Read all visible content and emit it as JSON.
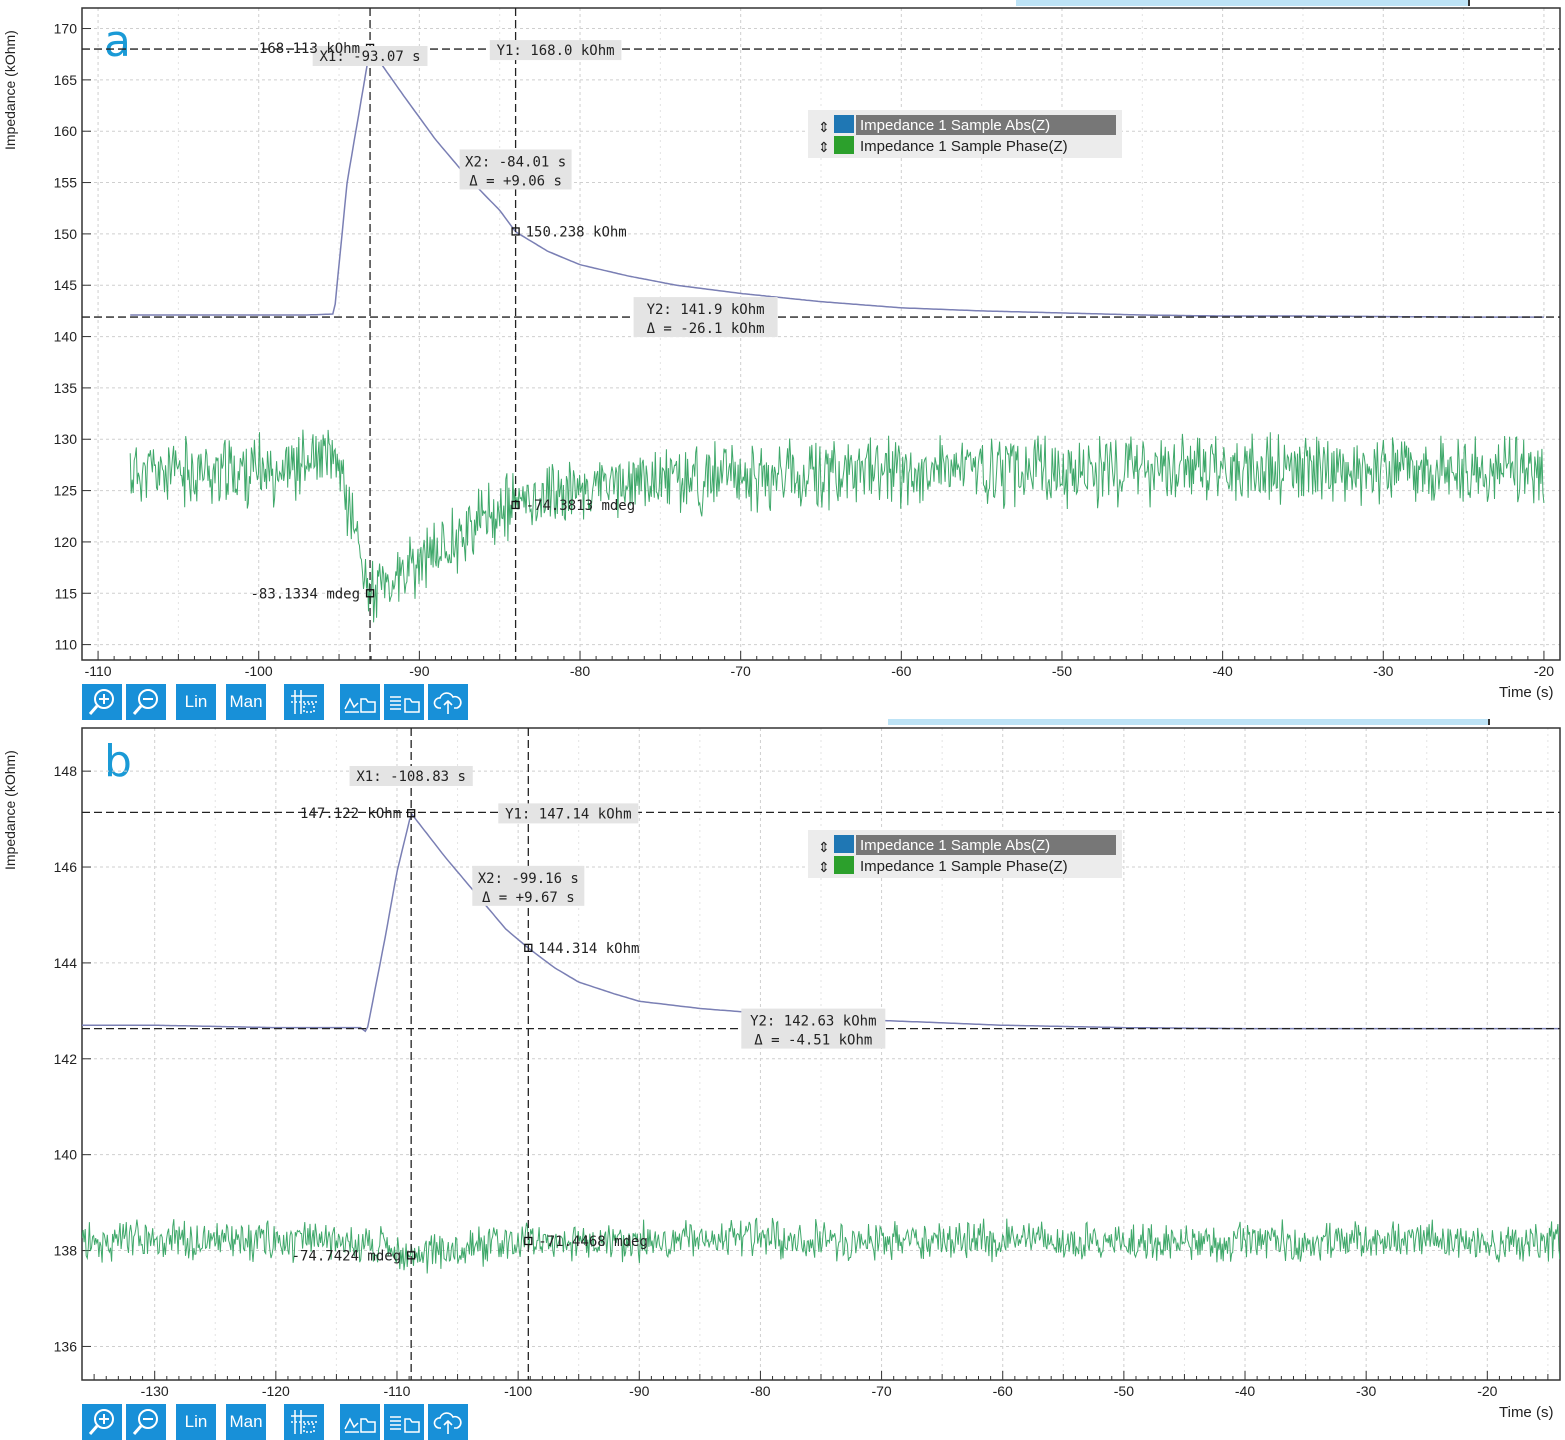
{
  "panels": [
    {
      "letter": "a",
      "ylabel": "Impedance (kOhm)",
      "xlabel": "Time (s)",
      "x_ticks": [
        "-110",
        "-100",
        "-90",
        "-80",
        "-70",
        "-60",
        "-50",
        "-40",
        "-30",
        "-20"
      ],
      "y_ticks": [
        "110",
        "115",
        "120",
        "125",
        "130",
        "135",
        "140",
        "145",
        "150",
        "155",
        "160",
        "165",
        "170"
      ],
      "cursors": {
        "x1": "X1: -93.07 s",
        "x2": "X2: -84.01 s",
        "x2_delta": "Δ = +9.06 s",
        "y1": "Y1: 168.0 kOhm",
        "y2": "Y2: 141.9 kOhm",
        "y2_delta": "Δ = -26.1 kOhm",
        "abs_at_x1": "168.113 kOhm",
        "abs_at_x2": "150.238 kOhm",
        "phase_at_x1": "-83.1334 mdeg",
        "phase_at_x2": "-74.3813 mdeg"
      },
      "legend": [
        "Impedance 1 Sample Abs(Z)",
        "Impedance 1 Sample Phase(Z)"
      ]
    },
    {
      "letter": "b",
      "ylabel": "Impedance (kOhm)",
      "xlabel": "Time (s)",
      "x_ticks": [
        "-130",
        "-120",
        "-110",
        "-100",
        "-90",
        "-80",
        "-70",
        "-60",
        "-50",
        "-40",
        "-30",
        "-20"
      ],
      "y_ticks": [
        "136",
        "138",
        "140",
        "142",
        "144",
        "146",
        "148"
      ],
      "cursors": {
        "x1": "X1: -108.83 s",
        "x2": "X2: -99.16 s",
        "x2_delta": "Δ = +9.67 s",
        "y1": "Y1: 147.14 kOhm",
        "y2": "Y2: 142.63 kOhm",
        "y2_delta": "Δ = -4.51 kOhm",
        "abs_at_x1": "147.122 kOhm",
        "abs_at_x2": "144.314 kOhm",
        "phase_at_x1": "-74.7424 mdeg",
        "phase_at_x2": "-71.4468 mdeg"
      },
      "legend": [
        "Impedance 1 Sample Abs(Z)",
        "Impedance 1 Sample Phase(Z)"
      ]
    }
  ],
  "toolbar": {
    "lin_label": "Lin",
    "man_label": "Man",
    "icons": [
      "zoom-in-icon",
      "zoom-out-icon",
      "cursor-grid-icon",
      "plot-export-icon",
      "data-export-icon",
      "cloud-upload-icon"
    ]
  },
  "colors": {
    "abs": "#7a7fb4",
    "phase": "#3fa86a",
    "legend_abs": "#1f77b4",
    "legend_phase": "#2ca02c",
    "toolbar": "#1890d8",
    "accent": "#1a9ad6"
  },
  "chart_data": [
    {
      "type": "line",
      "xlabel": "Time (s)",
      "ylabel": "Impedance (kOhm)",
      "xlim": [
        -111,
        -19
      ],
      "ylim": [
        108.5,
        172
      ],
      "grid": true,
      "legend_position": "top-center",
      "series": [
        {
          "name": "Impedance 1 Sample Abs(Z)",
          "x": [
            -108,
            -104,
            -100,
            -97,
            -95.3,
            -94.5,
            -93.07,
            -91,
            -89,
            -87,
            -85,
            -84.01,
            -82,
            -80,
            -77,
            -74,
            -70,
            -65,
            -60,
            -55,
            -50,
            -45,
            -40,
            -35,
            -30,
            -25,
            -20
          ],
          "y": [
            142.1,
            142.1,
            142.1,
            142.1,
            142.2,
            155,
            168.1,
            163.5,
            159.2,
            155.5,
            152.3,
            150.2,
            148.3,
            147,
            145.9,
            145,
            144.2,
            143.4,
            142.8,
            142.5,
            142.3,
            142.1,
            142.0,
            142.0,
            141.95,
            141.9,
            141.9
          ]
        },
        {
          "name": "Impedance 1 Sample Phase(Z)",
          "x": [
            -108,
            -104,
            -100,
            -98,
            -96,
            -95,
            -94,
            -93.07,
            -92,
            -90,
            -88,
            -86,
            -84.01,
            -82,
            -78,
            -74,
            -70,
            -65,
            -60,
            -55,
            -50,
            -45,
            -40,
            -35,
            -30,
            -25,
            -20
          ],
          "y": [
            126.8,
            126.8,
            126.9,
            127.4,
            128.0,
            127.4,
            121,
            115.0,
            115.6,
            117.8,
            120.2,
            122.2,
            123.6,
            124.7,
            125.6,
            126.1,
            126.4,
            126.6,
            126.8,
            126.9,
            127.0,
            127.0,
            127.0,
            127.0,
            127.0,
            127.0,
            127.0
          ]
        }
      ]
    },
    {
      "type": "line",
      "xlabel": "Time (s)",
      "ylabel": "Impedance (kOhm)",
      "xlim": [
        -136,
        -14
      ],
      "ylim": [
        135.3,
        148.9
      ],
      "grid": true,
      "legend_position": "top-center",
      "series": [
        {
          "name": "Impedance 1 Sample Abs(Z)",
          "x": [
            -136,
            -130,
            -120,
            -113,
            -112.5,
            -111,
            -110,
            -108.83,
            -106,
            -103,
            -101,
            -99.16,
            -97,
            -95,
            -92,
            -90,
            -85,
            -80,
            -70,
            -60,
            -50,
            -40,
            -30,
            -20,
            -14
          ],
          "y": [
            142.7,
            142.7,
            142.65,
            142.65,
            142.55,
            144.5,
            145.9,
            147.12,
            146.2,
            145.3,
            144.7,
            144.31,
            143.9,
            143.6,
            143.35,
            143.2,
            143.05,
            142.95,
            142.8,
            142.7,
            142.65,
            142.63,
            142.63,
            142.63,
            142.63
          ]
        },
        {
          "name": "Impedance 1 Sample Phase(Z)",
          "x": [
            -136,
            -130,
            -120,
            -115,
            -112,
            -110,
            -108.83,
            -106,
            -103,
            -99.16,
            -95,
            -90,
            -80,
            -70,
            -60,
            -50,
            -40,
            -30,
            -20,
            -14
          ],
          "y": [
            138.2,
            138.2,
            138.2,
            138.2,
            138.1,
            137.95,
            137.9,
            138.0,
            138.1,
            138.2,
            138.2,
            138.2,
            138.25,
            138.2,
            138.2,
            138.2,
            138.2,
            138.2,
            138.2,
            138.2
          ]
        }
      ]
    }
  ]
}
